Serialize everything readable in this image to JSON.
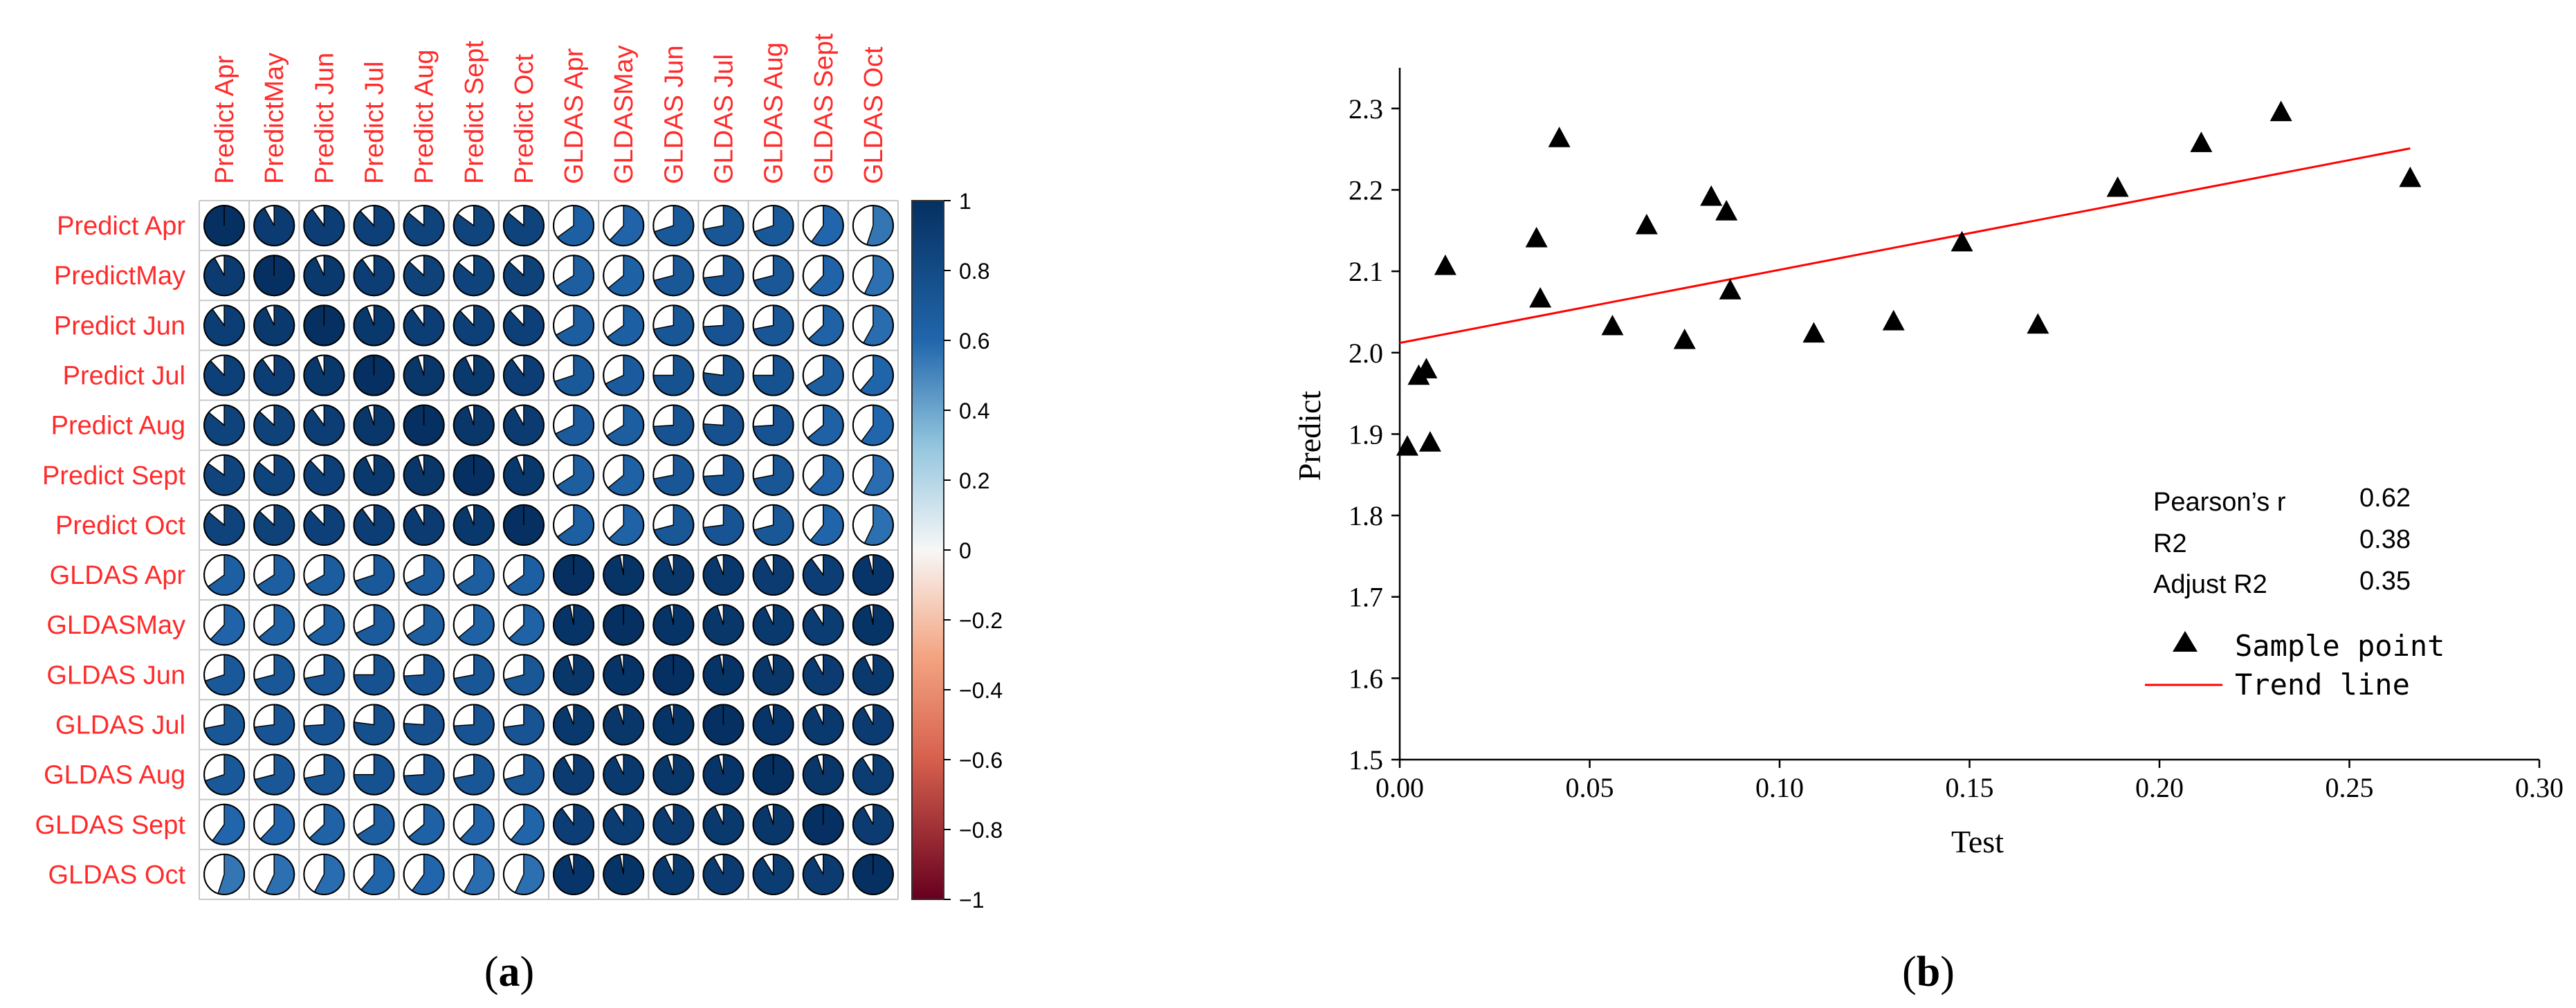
{
  "panels": {
    "a_label_open": "(",
    "a_label_letter": "a",
    "a_label_close": ")",
    "b_label_open": "(",
    "b_label_letter": "b",
    "b_label_close": ")"
  },
  "colors": {
    "label_red": "#ff2b2b",
    "pos_dark": "#053061",
    "pos_mid": "#2166ac",
    "pos_light": "#92c5de",
    "neutral": "#f7f7f7",
    "neg_light": "#f4a582",
    "neg_mid": "#d6604d",
    "neg_dark": "#67001f",
    "trend_line": "#ff0000",
    "marker": "#000000"
  },
  "chart_data": [
    {
      "type": "heatmap",
      "style": "pie-glyph correlation matrix",
      "row_labels": [
        "Predict Apr",
        "PredictMay",
        "Predict Jun",
        "Predict Jul",
        "Predict Aug",
        "Predict Sept",
        "Predict Oct",
        "GLDAS Apr",
        "GLDASMay",
        "GLDAS Jun",
        "GLDAS Jul",
        "GLDAS Aug",
        "GLDAS Sept",
        "GLDAS Oct"
      ],
      "col_labels": [
        "Predict Apr",
        "PredictMay",
        "Predict Jun",
        "Predict Jul",
        "Predict Aug",
        "Predict Sept",
        "Predict Oct",
        "GLDAS Apr",
        "GLDASMay",
        "GLDAS Jun",
        "GLDAS Jul",
        "GLDAS Aug",
        "GLDAS Sept",
        "GLDAS Oct"
      ],
      "values": [
        [
          1.0,
          0.92,
          0.9,
          0.88,
          0.86,
          0.85,
          0.86,
          0.65,
          0.62,
          0.7,
          0.72,
          0.7,
          0.6,
          0.55
        ],
        [
          0.92,
          1.0,
          0.93,
          0.9,
          0.87,
          0.86,
          0.87,
          0.66,
          0.64,
          0.71,
          0.73,
          0.71,
          0.62,
          0.57
        ],
        [
          0.9,
          0.93,
          1.0,
          0.94,
          0.9,
          0.88,
          0.88,
          0.67,
          0.65,
          0.72,
          0.74,
          0.72,
          0.63,
          0.58
        ],
        [
          0.88,
          0.9,
          0.94,
          1.0,
          0.95,
          0.93,
          0.9,
          0.7,
          0.68,
          0.75,
          0.77,
          0.75,
          0.66,
          0.61
        ],
        [
          0.86,
          0.87,
          0.9,
          0.95,
          1.0,
          0.95,
          0.92,
          0.68,
          0.66,
          0.74,
          0.76,
          0.74,
          0.64,
          0.6
        ],
        [
          0.85,
          0.86,
          0.88,
          0.93,
          0.95,
          1.0,
          0.94,
          0.66,
          0.64,
          0.72,
          0.74,
          0.72,
          0.62,
          0.58
        ],
        [
          0.86,
          0.87,
          0.88,
          0.9,
          0.92,
          0.94,
          1.0,
          0.65,
          0.63,
          0.71,
          0.73,
          0.71,
          0.61,
          0.57
        ],
        [
          0.65,
          0.66,
          0.67,
          0.7,
          0.68,
          0.66,
          0.65,
          1.0,
          0.97,
          0.95,
          0.94,
          0.92,
          0.9,
          0.96
        ],
        [
          0.62,
          0.64,
          0.65,
          0.68,
          0.66,
          0.64,
          0.63,
          0.97,
          1.0,
          0.97,
          0.95,
          0.93,
          0.91,
          0.97
        ],
        [
          0.7,
          0.71,
          0.72,
          0.75,
          0.74,
          0.72,
          0.71,
          0.95,
          0.97,
          1.0,
          0.97,
          0.95,
          0.92,
          0.93
        ],
        [
          0.72,
          0.73,
          0.74,
          0.77,
          0.76,
          0.74,
          0.73,
          0.94,
          0.95,
          0.97,
          1.0,
          0.96,
          0.93,
          0.92
        ],
        [
          0.7,
          0.71,
          0.72,
          0.75,
          0.74,
          0.72,
          0.71,
          0.92,
          0.93,
          0.95,
          0.96,
          1.0,
          0.95,
          0.91
        ],
        [
          0.6,
          0.62,
          0.63,
          0.66,
          0.64,
          0.62,
          0.61,
          0.9,
          0.91,
          0.92,
          0.93,
          0.95,
          1.0,
          0.92
        ],
        [
          0.55,
          0.57,
          0.58,
          0.61,
          0.6,
          0.58,
          0.57,
          0.96,
          0.97,
          0.93,
          0.92,
          0.91,
          0.92,
          1.0
        ]
      ],
      "colorbar": {
        "range": [
          -1,
          1
        ],
        "ticks": [
          1,
          0.8,
          0.6,
          0.4,
          0.2,
          0,
          -0.2,
          -0.4,
          -0.6,
          -0.8,
          -1
        ],
        "tick_labels": [
          "1",
          "0.8",
          "0.6",
          "0.4",
          "0.2",
          "0",
          "−0.2",
          "−0.4",
          "−0.6",
          "−0.8",
          "−1"
        ]
      }
    },
    {
      "type": "scatter",
      "xlabel": "Test",
      "ylabel": "Predict",
      "xlim": [
        0,
        0.3
      ],
      "ylim": [
        1.5,
        2.35
      ],
      "x_ticks": [
        0,
        0.05,
        0.1,
        0.15,
        0.2,
        0.25,
        0.3
      ],
      "x_tick_labels": [
        "0.00",
        "0.05",
        "0.10",
        "0.15",
        "0.20",
        "0.25",
        "0.30"
      ],
      "y_ticks": [
        1.5,
        1.6,
        1.7,
        1.8,
        1.9,
        2.0,
        2.1,
        2.2,
        2.3
      ],
      "y_tick_labels": [
        "1.5",
        "1.6",
        "1.7",
        "1.8",
        "1.9",
        "2.0",
        "2.1",
        "2.2",
        "2.3"
      ],
      "series": [
        {
          "name": "Sample point",
          "marker": "triangle",
          "x": [
            0.002,
            0.005,
            0.007,
            0.008,
            0.012,
            0.036,
            0.037,
            0.042,
            0.056,
            0.065,
            0.075,
            0.082,
            0.086,
            0.087,
            0.109,
            0.13,
            0.148,
            0.168,
            0.189,
            0.211,
            0.232,
            0.266
          ],
          "y": [
            1.885,
            1.972,
            1.98,
            1.89,
            2.107,
            2.141,
            2.067,
            2.264,
            2.033,
            2.157,
            2.016,
            2.192,
            2.174,
            2.077,
            2.024,
            2.039,
            2.136,
            2.035,
            2.203,
            2.258,
            2.296,
            2.215
          ]
        },
        {
          "name": "Trend line",
          "type": "line",
          "x": [
            0.0,
            0.266
          ],
          "y": [
            2.012,
            2.251
          ]
        }
      ],
      "stats": [
        {
          "label": "Pearson’s r",
          "value": "0.62"
        },
        {
          "label": "R2",
          "value": "0.38"
        },
        {
          "label": "Adjust R2",
          "value": "0.35"
        }
      ],
      "legend": [
        {
          "name": "Sample point",
          "symbol": "triangle"
        },
        {
          "name": "Trend line",
          "symbol": "line"
        }
      ]
    }
  ]
}
